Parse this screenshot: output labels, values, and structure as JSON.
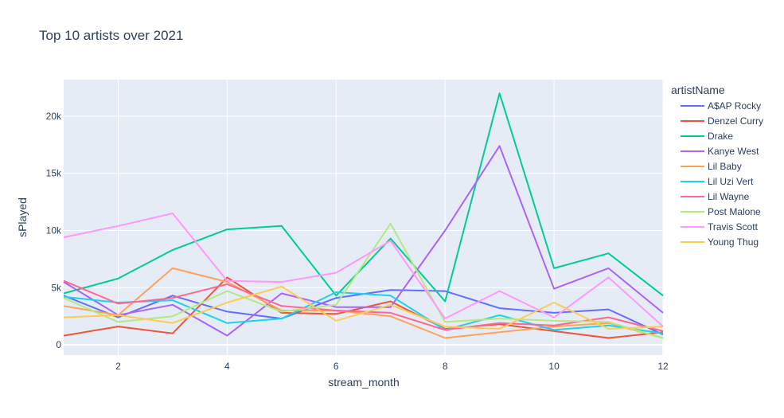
{
  "chart_data": {
    "type": "line",
    "title": "Top 10 artists over 2021",
    "xlabel": "stream_month",
    "ylabel": "sPlayed",
    "xlim": [
      1,
      12
    ],
    "ylim": [
      -900,
      23200
    ],
    "x_ticks": [
      2,
      4,
      6,
      8,
      10,
      12
    ],
    "x_tick_labels": [
      "2",
      "4",
      "6",
      "8",
      "10",
      "12"
    ],
    "y_ticks": [
      0,
      5000,
      10000,
      15000,
      20000
    ],
    "y_tick_labels": [
      "0",
      "5k",
      "10k",
      "15k",
      "20k"
    ],
    "grid": true,
    "legend_title": "artistName",
    "legend_position": "right",
    "x": [
      1,
      2,
      3,
      4,
      5,
      6,
      7,
      8,
      9,
      10,
      11,
      12
    ],
    "series": [
      {
        "name": "A$AP Rocky",
        "color": "#636efa",
        "values": [
          4300,
          2400,
          4300,
          2900,
          2300,
          4100,
          4800,
          4700,
          3200,
          2800,
          3100,
          900
        ]
      },
      {
        "name": "Denzel Curry",
        "color": "#ef553b",
        "values": [
          800,
          1600,
          1000,
          5900,
          2800,
          2700,
          3800,
          1400,
          1800,
          1200,
          600,
          1100
        ]
      },
      {
        "name": "Drake",
        "color": "#00cc96",
        "values": [
          4500,
          5800,
          8300,
          10100,
          10400,
          4300,
          9300,
          3800,
          22000,
          6700,
          8000,
          4300
        ]
      },
      {
        "name": "Kanye West",
        "color": "#ab63fa",
        "values": [
          5500,
          2600,
          3500,
          800,
          4500,
          3300,
          3300,
          10000,
          17400,
          4900,
          6700,
          2800
        ]
      },
      {
        "name": "Lil Baby",
        "color": "#ffa15a",
        "values": [
          3400,
          2600,
          6700,
          5500,
          3000,
          3000,
          2500,
          600,
          1100,
          1600,
          1900,
          600
        ]
      },
      {
        "name": "Lil Uzi Vert",
        "color": "#19d3f3",
        "values": [
          4200,
          3700,
          3900,
          1900,
          2300,
          4600,
          4300,
          1300,
          2600,
          1300,
          1700,
          1000
        ]
      },
      {
        "name": "Lil Wayne",
        "color": "#ff6692",
        "values": [
          5600,
          3600,
          4100,
          5300,
          3400,
          3000,
          2800,
          1300,
          1900,
          1700,
          2400,
          1200
        ]
      },
      {
        "name": "Post Malone",
        "color": "#b6e880",
        "values": [
          4100,
          2000,
          2500,
          4700,
          2900,
          3500,
          10600,
          2000,
          2300,
          2100,
          2000,
          600
        ]
      },
      {
        "name": "Travis Scott",
        "color": "#ff97ff",
        "values": [
          9400,
          10400,
          11500,
          5600,
          5500,
          6300,
          9100,
          2300,
          4700,
          2400,
          5900,
          1600
        ]
      },
      {
        "name": "Young Thug",
        "color": "#fecb52",
        "values": [
          2400,
          2600,
          1900,
          3700,
          5100,
          2100,
          3500,
          1600,
          1400,
          3700,
          1400,
          1600
        ]
      }
    ]
  }
}
